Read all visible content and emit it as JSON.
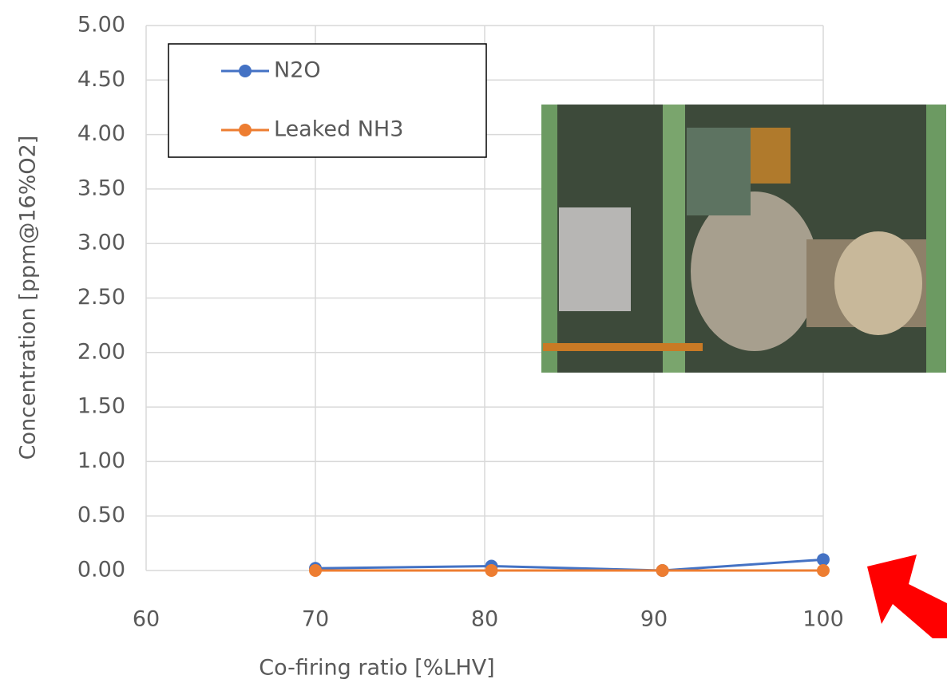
{
  "chart_data": {
    "type": "line",
    "xlabel": "Co-firing ratio [%LHV]",
    "ylabel": "Concentration [ppm@16%O2]",
    "series": [
      {
        "name": "N2O",
        "color": "#4472c4",
        "x": [
          70,
          80.4,
          90.5,
          100
        ],
        "values": [
          0.02,
          0.04,
          0.0,
          0.1
        ]
      },
      {
        "name": "Leaked NH3",
        "color": "#ed7d31",
        "x": [
          70,
          80.4,
          90.5,
          100
        ],
        "values": [
          0.0,
          0.0,
          0.0,
          0.0
        ]
      }
    ],
    "xlim": [
      60,
      100
    ],
    "xticks": [
      60,
      70,
      80,
      90,
      100
    ],
    "ylim": [
      0,
      5
    ],
    "yticks": [
      {
        "value": 0,
        "label": "0.00"
      },
      {
        "value": 0.5,
        "label": "0.50"
      },
      {
        "value": 1,
        "label": "1.00"
      },
      {
        "value": 1.5,
        "label": "1.50"
      },
      {
        "value": 2,
        "label": "2.00"
      },
      {
        "value": 2.5,
        "label": "2.50"
      },
      {
        "value": 3,
        "label": "3.00"
      },
      {
        "value": 3.5,
        "label": "3.50"
      },
      {
        "value": 4,
        "label": "4.00"
      },
      {
        "value": 4.5,
        "label": "4.50"
      },
      {
        "value": 5,
        "label": "5.00"
      }
    ],
    "grid": true,
    "legend": "upper left"
  }
}
